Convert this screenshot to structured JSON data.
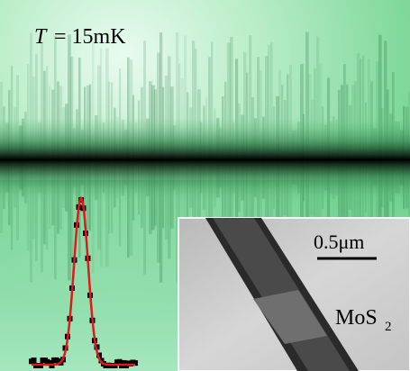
{
  "label": {
    "symbol": "T",
    "value": "= 15mK"
  },
  "inset": {
    "scale_bar": "0.5μm",
    "material": "MoS",
    "material_subscript": "2"
  }
}
